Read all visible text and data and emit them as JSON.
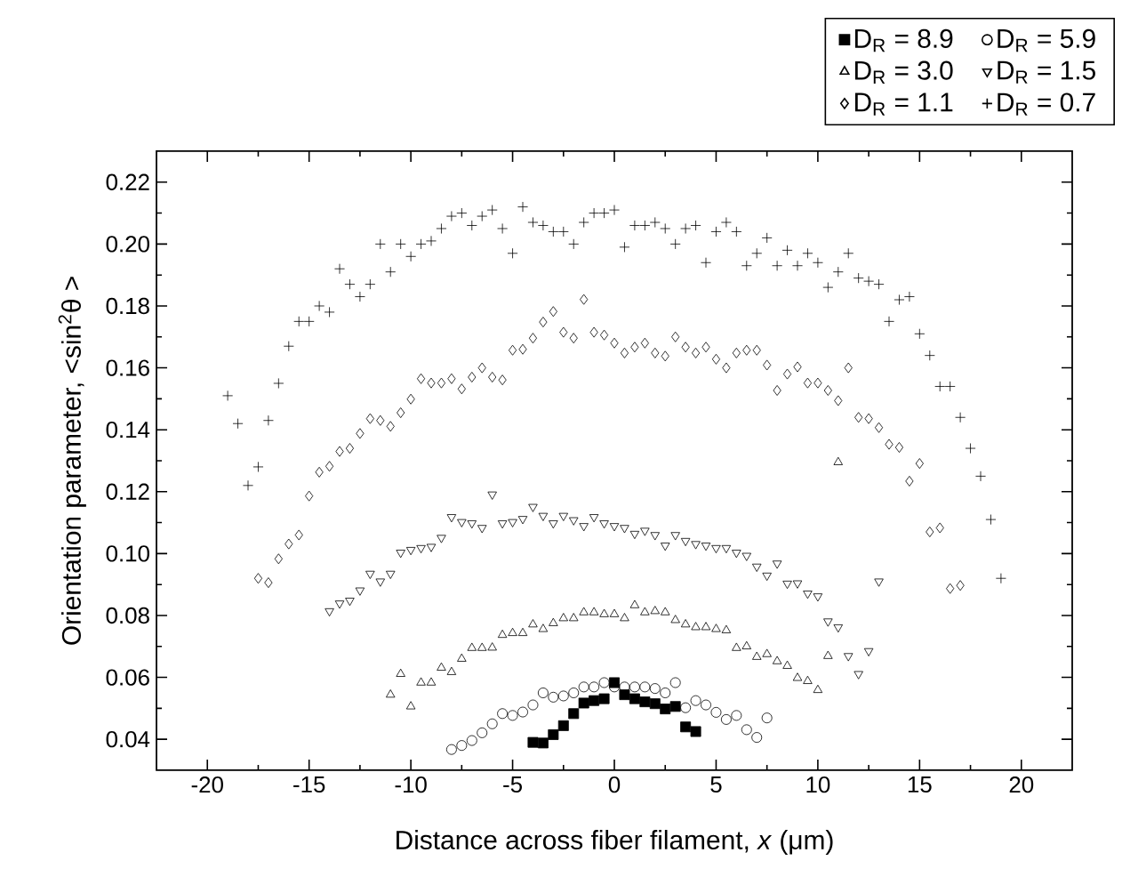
{
  "chart_data": {
    "type": "scatter",
    "xlabel": "Distance across fiber filament, *x* (μm)",
    "ylabel": "Orientation parameter, <sin$^{2}$θ >",
    "xlim": [
      -22.5,
      22.5
    ],
    "ylim": [
      0.03,
      0.23
    ],
    "xticks": [
      -20,
      -15,
      -10,
      -5,
      0,
      5,
      10,
      15,
      20
    ],
    "yticks": [
      0.04,
      0.06,
      0.08,
      {
        "value": 0.1,
        "label": "0.10"
      },
      0.12,
      0.14,
      0.16,
      0.18,
      {
        "value": 0.2,
        "label": "0.20"
      },
      0.22
    ],
    "legend": "top right",
    "grid": false,
    "series": [
      {
        "name": "D$_{R}$ = 8.9",
        "color": "#000000",
        "marker": "square",
        "x": [
          -4.0,
          -3.5,
          -3.0,
          -2.5,
          -2.0,
          -1.5,
          -1.0,
          -0.5,
          0.0,
          0.5,
          1.0,
          1.5,
          2.0,
          2.5,
          3.0,
          3.5,
          4.0
        ],
        "values": [
          0.039,
          0.0388,
          0.0415,
          0.0444,
          0.0483,
          0.0517,
          0.0525,
          0.0531,
          0.0583,
          0.0544,
          0.0531,
          0.0521,
          0.0515,
          0.0498,
          0.0506,
          0.044,
          0.0425
        ]
      },
      {
        "name": "D$_{R}$ = 5.9",
        "color": "#000000",
        "marker": "circle",
        "x": [
          -8.0,
          -7.5,
          -7.0,
          -6.5,
          -6.0,
          -5.5,
          -5.0,
          -4.5,
          -4.0,
          -3.5,
          -3.0,
          -2.5,
          -2.0,
          -1.5,
          -1.0,
          -0.5,
          0.0,
          0.5,
          1.0,
          1.5,
          2.0,
          2.5,
          3.0,
          3.5,
          4.0,
          4.5,
          5.0,
          5.5,
          6.0,
          6.5,
          7.0,
          7.5
        ],
        "values": [
          0.0367,
          0.038,
          0.0396,
          0.0421,
          0.045,
          0.0483,
          0.0477,
          0.0488,
          0.0511,
          0.055,
          0.0536,
          0.054,
          0.055,
          0.0569,
          0.0569,
          0.0583,
          0.0569,
          0.0569,
          0.0569,
          0.0569,
          0.0564,
          0.055,
          0.0583,
          0.0502,
          0.0525,
          0.0511,
          0.0487,
          0.0464,
          0.0477,
          0.0431,
          0.0406,
          0.0469
        ]
      },
      {
        "name": "D$_{R}$ = 3.0",
        "color": "#000000",
        "marker": "triangle",
        "x": [
          -11.0,
          -10.5,
          -10.0,
          -9.5,
          -9.0,
          -8.5,
          -8.0,
          -7.5,
          -7.0,
          -6.5,
          -6.0,
          -5.5,
          -5.0,
          -4.5,
          -4.0,
          -3.5,
          -3.0,
          -2.5,
          -2.0,
          -1.5,
          -1.0,
          -0.5,
          0.0,
          0.5,
          1.0,
          1.5,
          2.0,
          2.5,
          3.0,
          3.5,
          4.0,
          4.5,
          5.0,
          5.5,
          6.0,
          6.5,
          7.0,
          7.5,
          8.0,
          8.5,
          9.0,
          9.5,
          10.0,
          10.5,
          11.0
        ],
        "values": [
          0.0544,
          0.0611,
          0.0506,
          0.0583,
          0.0583,
          0.0631,
          0.0617,
          0.066,
          0.0695,
          0.0695,
          0.0696,
          0.0737,
          0.0743,
          0.0743,
          0.0771,
          0.0756,
          0.0775,
          0.0791,
          0.0791,
          0.081,
          0.081,
          0.0804,
          0.0804,
          0.0791,
          0.0833,
          0.081,
          0.0814,
          0.081,
          0.0785,
          0.0771,
          0.0762,
          0.0762,
          0.0756,
          0.0752,
          0.0695,
          0.07,
          0.0666,
          0.0675,
          0.0652,
          0.0637,
          0.0598,
          0.0588,
          0.0559,
          0.0669,
          0.1295
        ]
      },
      {
        "name": "D$_{R}$ = 1.5",
        "color": "#000000",
        "marker": "triangle-down",
        "x": [
          -14.0,
          -13.5,
          -13.0,
          -12.5,
          -12.0,
          -11.5,
          -11.0,
          -10.5,
          -10.0,
          -9.5,
          -9.0,
          -8.5,
          -8.0,
          -7.5,
          -7.0,
          -6.5,
          -6.0,
          -5.5,
          -5.0,
          -4.5,
          -4.0,
          -3.5,
          -3.0,
          -2.5,
          -2.0,
          -1.5,
          -1.0,
          -0.5,
          0.0,
          0.5,
          1.0,
          1.5,
          2.0,
          2.5,
          3.0,
          3.5,
          4.0,
          4.5,
          5.0,
          5.5,
          6.0,
          6.5,
          7.0,
          7.5,
          8.0,
          8.5,
          9.0,
          9.5,
          10.0,
          10.5,
          11.0,
          11.5,
          12.0,
          12.5,
          13.0
        ],
        "values": [
          0.0814,
          0.0839,
          0.0848,
          0.0881,
          0.0935,
          0.091,
          0.0935,
          0.1003,
          0.1012,
          0.1018,
          0.1022,
          0.1051,
          0.1118,
          0.1102,
          0.1098,
          0.1083,
          0.1191,
          0.1098,
          0.1102,
          0.1112,
          0.1151,
          0.1122,
          0.1098,
          0.1122,
          0.1108,
          0.1089,
          0.1118,
          0.1098,
          0.1089,
          0.1083,
          0.1064,
          0.1074,
          0.106,
          0.1026,
          0.106,
          0.1041,
          0.1031,
          0.1026,
          0.1018,
          0.1018,
          0.1003,
          0.0993,
          0.0958,
          0.0929,
          0.0968,
          0.0903,
          0.0904,
          0.0871,
          0.0862,
          0.0781,
          0.0762,
          0.0669,
          0.0611,
          0.0685,
          0.091
        ]
      },
      {
        "name": "D$_{R}$ = 1.1",
        "color": "#000000",
        "marker": "diamond",
        "x": [
          -17.5,
          -17.0,
          -16.5,
          -16.0,
          -15.5,
          -15.0,
          -14.5,
          -14.0,
          -13.5,
          -13.0,
          -12.5,
          -12.0,
          -11.5,
          -11.0,
          -10.5,
          -10.0,
          -9.5,
          -9.0,
          -8.5,
          -8.0,
          -7.5,
          -7.0,
          -6.5,
          -6.0,
          -5.5,
          -5.0,
          -4.5,
          -4.0,
          -3.5,
          -3.0,
          -2.5,
          -2.0,
          -1.5,
          -1.0,
          -0.5,
          0.0,
          0.5,
          1.0,
          1.5,
          2.0,
          2.5,
          3.0,
          3.5,
          4.0,
          4.5,
          5.0,
          5.5,
          6.0,
          6.5,
          7.0,
          7.5,
          8.0,
          8.5,
          9.0,
          9.5,
          10.0,
          10.5,
          11.0,
          11.5,
          12.0,
          12.5,
          13.0,
          13.5,
          14.0,
          14.5,
          15.0,
          15.5,
          16.0,
          16.5,
          17.0
        ],
        "values": [
          0.092,
          0.0906,
          0.0983,
          0.1031,
          0.106,
          0.1186,
          0.1263,
          0.1282,
          0.133,
          0.134,
          0.1388,
          0.1436,
          0.143,
          0.1411,
          0.1455,
          0.1499,
          0.1565,
          0.1551,
          0.1551,
          0.1565,
          0.1532,
          0.157,
          0.16,
          0.157,
          0.1561,
          0.1657,
          0.166,
          0.1696,
          0.1748,
          0.1782,
          0.1715,
          0.1696,
          0.1821,
          0.1715,
          0.1706,
          0.168,
          0.1648,
          0.1667,
          0.168,
          0.1648,
          0.1638,
          0.17,
          0.1667,
          0.1648,
          0.1667,
          0.1628,
          0.16,
          0.1648,
          0.1657,
          0.1657,
          0.1609,
          0.1527,
          0.158,
          0.1603,
          0.1551,
          0.1551,
          0.1527,
          0.1494,
          0.16,
          0.144,
          0.1436,
          0.1407,
          0.1353,
          0.1343,
          0.1234,
          0.1291,
          0.107,
          0.1083,
          0.0887,
          0.0897
        ]
      },
      {
        "name": "D$_{R}$ = 0.7",
        "color": "#000000",
        "marker": "cross",
        "x": [
          -19.0,
          -18.5,
          -18.0,
          -17.5,
          -17.0,
          -16.5,
          -16.0,
          -15.5,
          -15.0,
          -14.5,
          -14.0,
          -13.5,
          -13.0,
          -12.5,
          -12.0,
          -11.5,
          -11.0,
          -10.5,
          -10.0,
          -9.5,
          -9.0,
          -8.5,
          -8.0,
          -7.5,
          -7.0,
          -6.5,
          -6.0,
          -5.5,
          -5.0,
          -4.5,
          -4.0,
          -3.5,
          -3.0,
          -2.5,
          -2.0,
          -1.5,
          -1.0,
          -0.5,
          0.0,
          0.5,
          1.0,
          1.5,
          2.0,
          2.5,
          3.0,
          3.5,
          4.0,
          4.5,
          5.0,
          5.5,
          6.0,
          6.5,
          7.0,
          7.5,
          8.0,
          8.5,
          9.0,
          9.5,
          10.0,
          10.5,
          11.0,
          11.5,
          12.0,
          12.5,
          13.0,
          13.5,
          14.0,
          14.5,
          15.0,
          15.5,
          16.0,
          16.5,
          17.0,
          17.5,
          18.0,
          18.5,
          19.0
        ],
        "values": [
          0.151,
          0.142,
          0.122,
          0.128,
          0.143,
          0.155,
          0.167,
          0.175,
          0.175,
          0.18,
          0.178,
          0.192,
          0.187,
          0.183,
          0.187,
          0.2,
          0.191,
          0.2,
          0.196,
          0.2,
          0.201,
          0.205,
          0.209,
          0.21,
          0.206,
          0.209,
          0.211,
          0.205,
          0.197,
          0.212,
          0.207,
          0.206,
          0.204,
          0.204,
          0.2,
          0.207,
          0.21,
          0.21,
          0.211,
          0.199,
          0.206,
          0.206,
          0.207,
          0.205,
          0.2,
          0.205,
          0.206,
          0.194,
          0.204,
          0.207,
          0.204,
          0.193,
          0.197,
          0.202,
          0.193,
          0.198,
          0.193,
          0.197,
          0.194,
          0.186,
          0.191,
          0.197,
          0.189,
          0.188,
          0.187,
          0.175,
          0.182,
          0.183,
          0.171,
          0.164,
          0.154,
          0.154,
          0.144,
          0.134,
          0.125,
          0.111,
          0.092
        ]
      }
    ]
  }
}
